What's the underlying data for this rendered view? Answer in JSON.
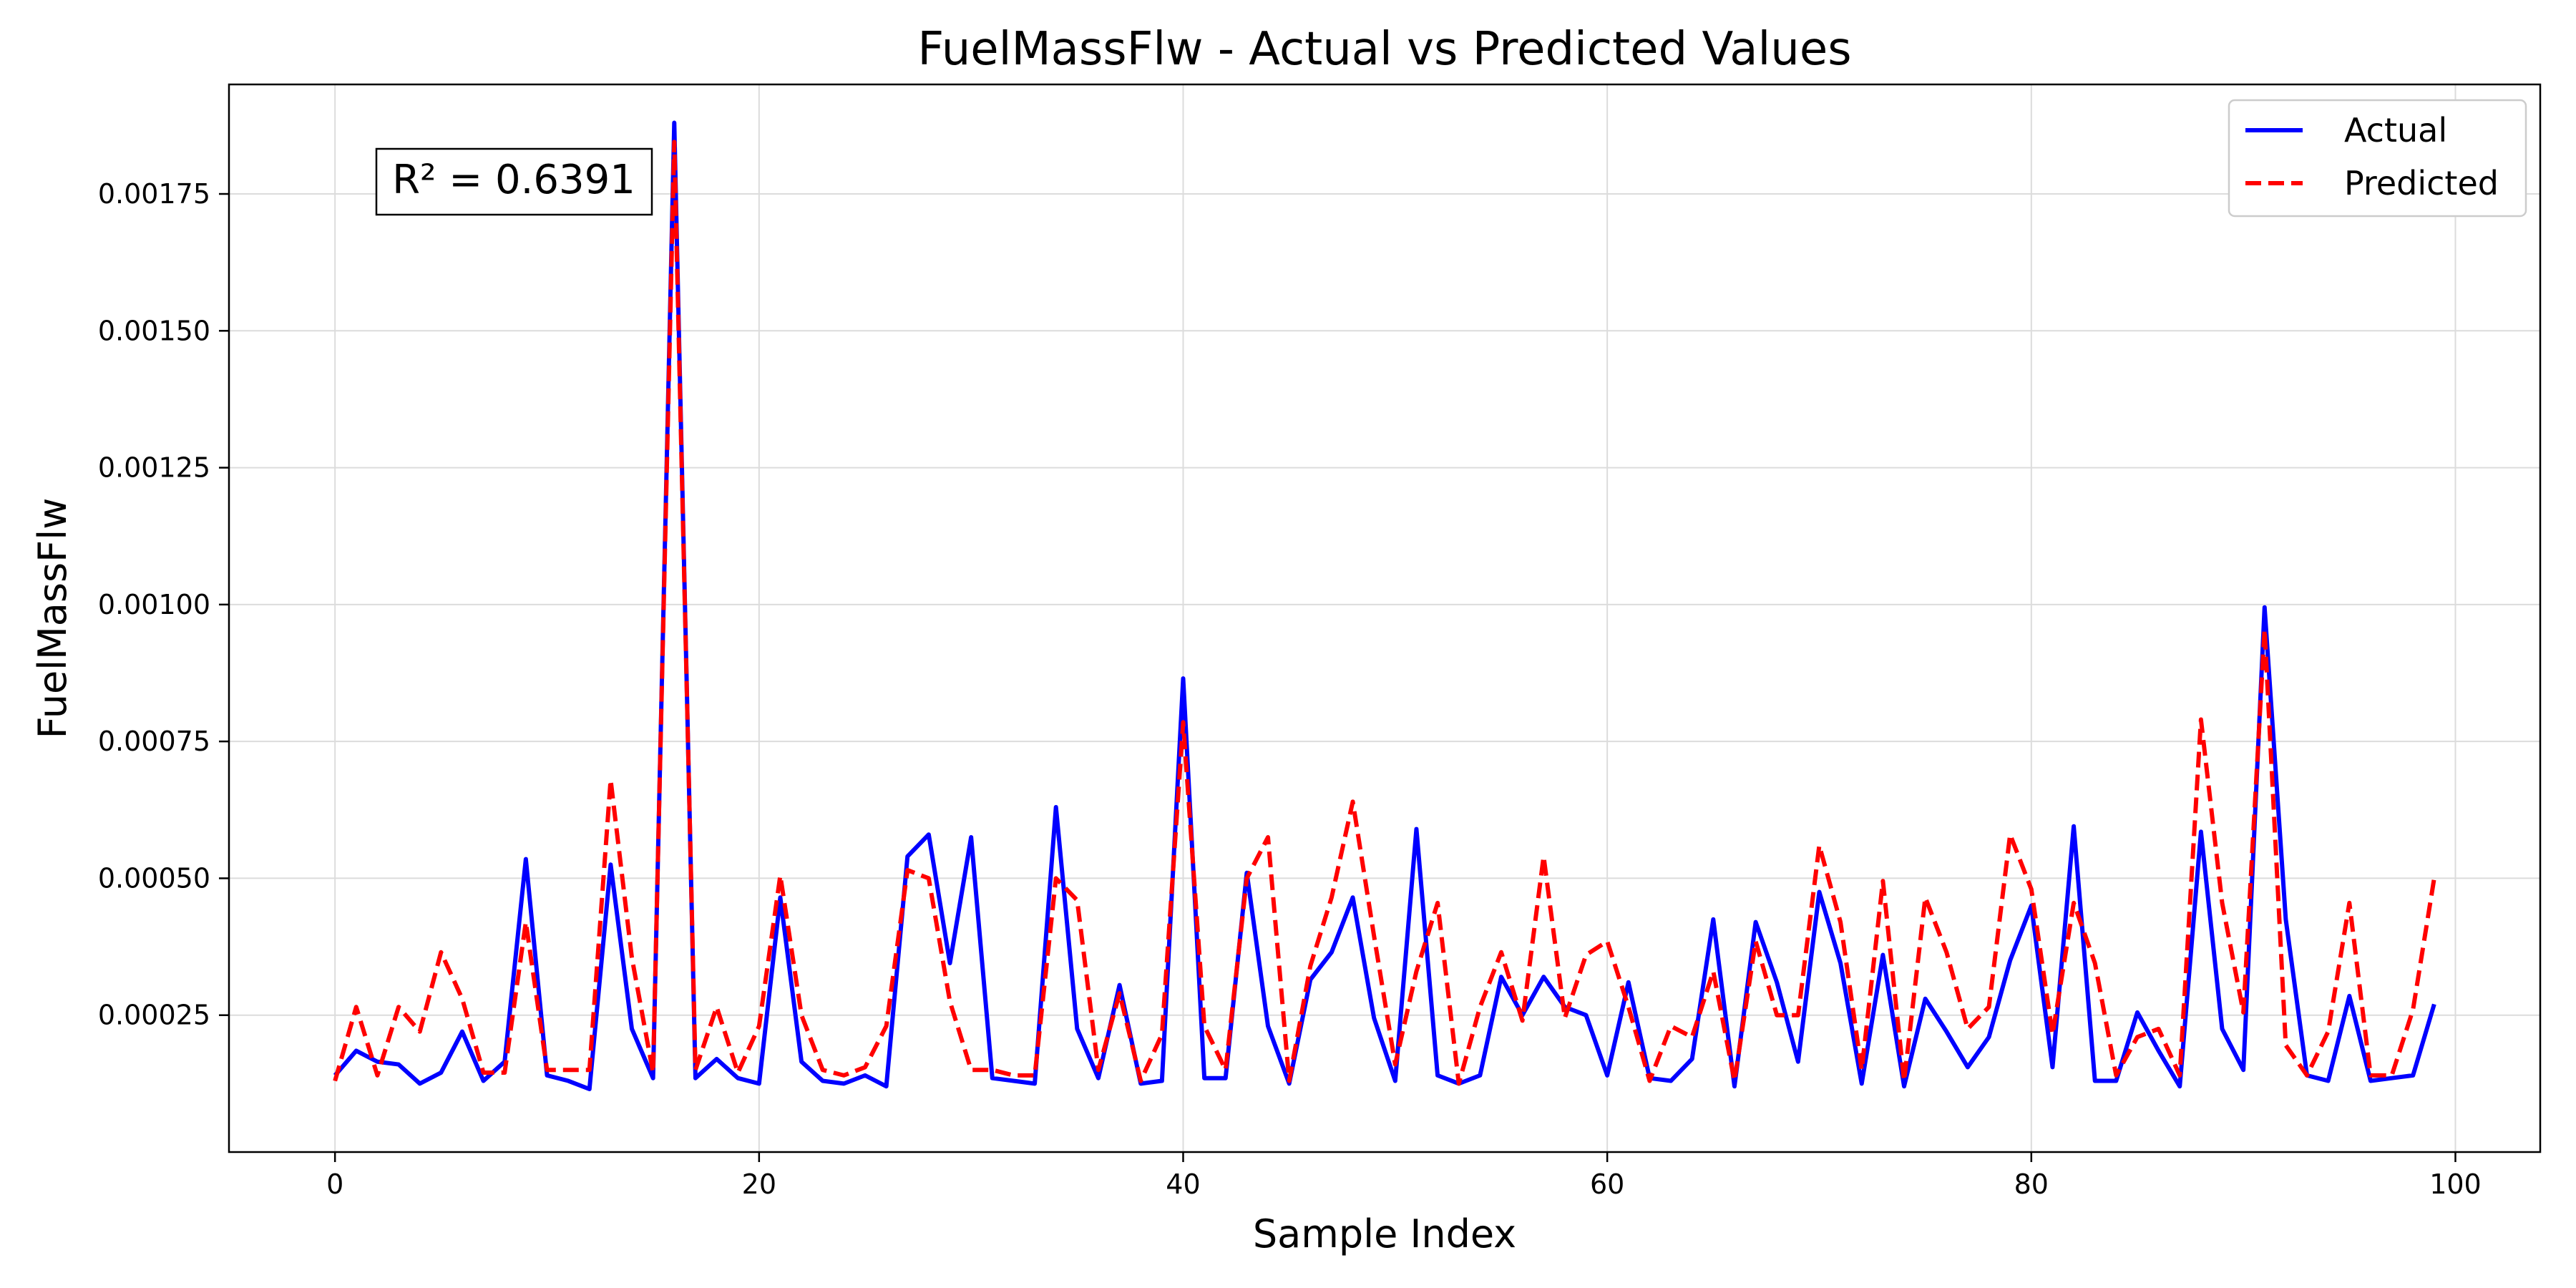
{
  "chart_data": {
    "type": "line",
    "title": "FuelMassFlw - Actual vs Predicted Values",
    "xlabel": "Sample Index",
    "ylabel": "FuelMassFlw",
    "xlim": [
      -5,
      104
    ],
    "ylim": [
      0.0,
      0.00195
    ],
    "x_ticks": [
      0,
      20,
      40,
      60,
      80,
      100
    ],
    "x_tick_labels": [
      "0",
      "20",
      "40",
      "60",
      "80",
      "100"
    ],
    "y_ticks": [
      0.00025,
      0.0005,
      0.00075,
      0.001,
      0.00125,
      0.0015,
      0.00175
    ],
    "y_tick_labels": [
      "0.00025",
      "0.00050",
      "0.00075",
      "0.00100",
      "0.00125",
      "0.00150",
      "0.00175"
    ],
    "grid": true,
    "legend_position": "top-right",
    "annotation": "R² = 0.6391",
    "series": [
      {
        "name": "Actual",
        "color": "#0000ff",
        "style": "solid",
        "values": [
          0.00014,
          0.000185,
          0.000165,
          0.00016,
          0.000125,
          0.000145,
          0.00022,
          0.00013,
          0.000165,
          0.000535,
          0.00014,
          0.00013,
          0.000115,
          0.000525,
          0.000225,
          0.000135,
          0.00188,
          0.000135,
          0.00017,
          0.000135,
          0.000125,
          0.000465,
          0.000165,
          0.00013,
          0.000125,
          0.00014,
          0.00012,
          0.00054,
          0.00058,
          0.000345,
          0.000575,
          0.000135,
          0.00013,
          0.000125,
          0.00063,
          0.000225,
          0.000135,
          0.000305,
          0.000125,
          0.00013,
          0.000865,
          0.000135,
          0.000135,
          0.00051,
          0.00023,
          0.000125,
          0.000315,
          0.000365,
          0.000465,
          0.000245,
          0.00013,
          0.00059,
          0.00014,
          0.000125,
          0.00014,
          0.00032,
          0.00025,
          0.00032,
          0.000265,
          0.00025,
          0.00014,
          0.00031,
          0.000135,
          0.00013,
          0.00017,
          0.000425,
          0.00012,
          0.00042,
          0.00031,
          0.000165,
          0.000475,
          0.000345,
          0.000125,
          0.00036,
          0.00012,
          0.00028,
          0.00022,
          0.000155,
          0.00021,
          0.00035,
          0.00045,
          0.000155,
          0.000595,
          0.00013,
          0.00013,
          0.000255,
          0.000185,
          0.00012,
          0.000585,
          0.000225,
          0.00015,
          0.000995,
          0.000425,
          0.00014,
          0.00013,
          0.000285,
          0.00013,
          0.000135,
          0.00014,
          0.00027
        ]
      },
      {
        "name": "Predicted",
        "color": "#ff0000",
        "style": "dashed",
        "values": [
          0.00013,
          0.000265,
          0.00014,
          0.000265,
          0.00022,
          0.000365,
          0.00028,
          0.000145,
          0.000145,
          0.00042,
          0.00015,
          0.00015,
          0.00015,
          0.00068,
          0.000355,
          0.000145,
          0.001845,
          0.00015,
          0.000265,
          0.000145,
          0.00023,
          0.000505,
          0.00025,
          0.00015,
          0.00014,
          0.000155,
          0.00023,
          0.000515,
          0.0005,
          0.000275,
          0.00015,
          0.00015,
          0.00014,
          0.00014,
          0.0005,
          0.00046,
          0.00015,
          0.00029,
          0.00013,
          0.000215,
          0.000785,
          0.00023,
          0.00015,
          0.0005,
          0.000575,
          0.00013,
          0.00034,
          0.000465,
          0.00064,
          0.000395,
          0.00016,
          0.00033,
          0.000455,
          0.000125,
          0.000265,
          0.000365,
          0.00024,
          0.00054,
          0.000245,
          0.00036,
          0.000385,
          0.000265,
          0.00013,
          0.00023,
          0.00021,
          0.00033,
          0.00013,
          0.000385,
          0.00025,
          0.00025,
          0.00056,
          0.00042,
          0.00015,
          0.000495,
          0.00013,
          0.000465,
          0.000365,
          0.000225,
          0.000265,
          0.00058,
          0.00048,
          0.000215,
          0.000455,
          0.000345,
          0.00014,
          0.00021,
          0.000225,
          0.00014,
          0.00079,
          0.000455,
          0.000255,
          0.000955,
          0.000195,
          0.00014,
          0.00022,
          0.000455,
          0.00014,
          0.00014,
          0.00026,
          0.0005
        ]
      }
    ]
  }
}
